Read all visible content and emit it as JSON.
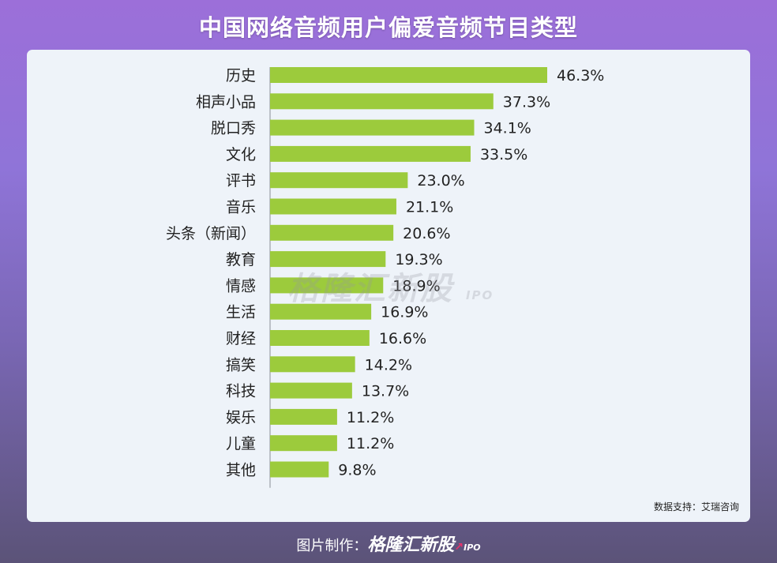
{
  "title": "中国网络音频用户偏爱音频节目类型",
  "source": "数据支持：艾瑞咨询",
  "watermark": "格隆汇新股",
  "watermark_sub": "IPO",
  "footer": {
    "prefix": "图片制作：",
    "brand": "格隆汇新股",
    "brand_sub": "IPO"
  },
  "colors": {
    "bar": "#9ccb3c",
    "panel": "#eef3f9"
  },
  "chart_data": {
    "type": "bar",
    "orientation": "horizontal",
    "title": "中国网络音频用户偏爱音频节目类型",
    "xlabel": "",
    "ylabel": "",
    "unit": "%",
    "xlim": [
      0,
      46.3
    ],
    "grid": false,
    "categories": [
      "历史",
      "相声小品",
      "脱口秀",
      "文化",
      "评书",
      "音乐",
      "头条（新闻）",
      "教育",
      "情感",
      "生活",
      "财经",
      "搞笑",
      "科技",
      "娱乐",
      "儿童",
      "其他"
    ],
    "values": [
      46.3,
      37.3,
      34.1,
      33.5,
      23.0,
      21.1,
      20.6,
      19.3,
      18.9,
      16.9,
      16.6,
      14.2,
      13.7,
      11.2,
      11.2,
      9.8
    ],
    "value_labels": [
      "46.3%",
      "37.3%",
      "34.1%",
      "33.5%",
      "23.0%",
      "21.1%",
      "20.6%",
      "19.3%",
      "18.9%",
      "16.9%",
      "16.6%",
      "14.2%",
      "13.7%",
      "11.2%",
      "11.2%",
      "9.8%"
    ]
  }
}
